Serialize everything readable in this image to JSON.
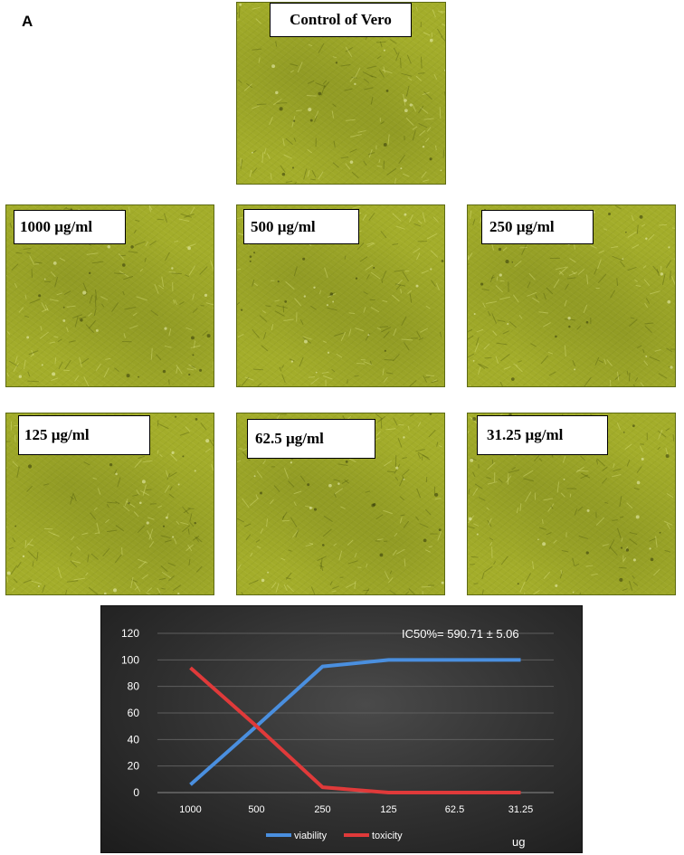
{
  "panel_letter": "A",
  "images": [
    {
      "label": "Control of Vero"
    },
    {
      "label": "1000 µg/ml"
    },
    {
      "label": "500 µg/ml"
    },
    {
      "label": "250 µg/ml"
    },
    {
      "label": "125 µg/ml"
    },
    {
      "label": "62.5 µg/ml"
    },
    {
      "label": "31.25 µg/ml"
    }
  ],
  "chart_data": {
    "type": "line",
    "categories": [
      "1000",
      "500",
      "250",
      "125",
      "62.5",
      "31.25"
    ],
    "series": [
      {
        "name": "viability",
        "color": "#4a8fdf",
        "values": [
          6,
          50,
          95,
          100,
          100,
          100
        ]
      },
      {
        "name": "toxicity",
        "color": "#e03a3a",
        "values": [
          94,
          50,
          4,
          0,
          0,
          0
        ]
      }
    ],
    "ylim": [
      0,
      120
    ],
    "yticks": [
      "0",
      "20",
      "40",
      "60",
      "80",
      "100",
      "120"
    ],
    "xlabel": "ug",
    "annotation": "IC50%= 590.71 ± 5.06",
    "grid": true,
    "legend_position": "bottom"
  }
}
